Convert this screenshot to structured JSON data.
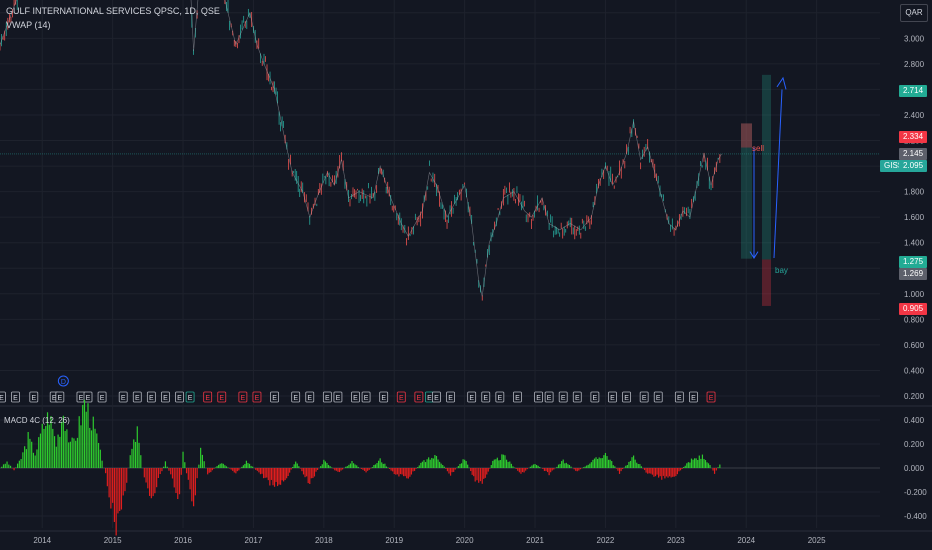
{
  "chart": {
    "title": "GULF INTERNATIONAL SERVICES QPSC, 1D, QSE",
    "indicator": "VWAP (14)",
    "currency": "QAR",
    "macd_label": "MACD 4C (12, 26)",
    "symbol": "GISS",
    "last_price": "2.095",
    "tags": {
      "upper_target": "2.714",
      "sell_level": "2.334",
      "mid_level": "2.145",
      "buy_level": "1.275",
      "buy_low": "1.269",
      "stop_level": "0.905"
    },
    "annotations": {
      "sell": "sell",
      "buy": "bay"
    },
    "events": {
      "dividend_marker": "D",
      "earnings_marker": "E"
    },
    "colors": {
      "background": "#131722",
      "up": "#26a69a",
      "down": "#ef5350",
      "macd_up": "#2ecc2e",
      "macd_down": "#e01e1e",
      "target_arrow": "#2962ff",
      "vwap": "#b0b3ba"
    }
  },
  "chart_data": {
    "type": "line",
    "price_axis": {
      "ticks": [
        "3.200",
        "3.000",
        "2.800",
        "2.600",
        "2.400",
        "2.200",
        "2.000",
        "1.800",
        "1.600",
        "1.400",
        "1.200",
        "1.000",
        "0.800",
        "0.600",
        "0.400",
        "0.200"
      ],
      "ylim": [
        0.2,
        3.3
      ]
    },
    "macd_axis": {
      "ticks": [
        "0.400",
        "0.200",
        "0.000",
        "-0.200",
        "-0.400"
      ],
      "ylim": [
        -0.5,
        0.5
      ]
    },
    "x_labels": [
      "2014",
      "2015",
      "2016",
      "2017",
      "2018",
      "2019",
      "2020",
      "2021",
      "2022",
      "2023",
      "2024",
      "2025"
    ],
    "x_range": [
      2013.4,
      2025.9
    ],
    "price_series": {
      "name": "GISS",
      "points": [
        [
          2013.4,
          2.95
        ],
        [
          2013.6,
          3.25
        ],
        [
          2013.8,
          3.55
        ],
        [
          2014.0,
          3.75
        ],
        [
          2014.85,
          3.95
        ],
        [
          2015.0,
          3.8
        ],
        [
          2015.1,
          3.5
        ],
        [
          2015.2,
          3.6
        ],
        [
          2015.3,
          3.5
        ],
        [
          2015.55,
          3.85
        ],
        [
          2015.9,
          3.6
        ],
        [
          2016.1,
          3.45
        ],
        [
          2016.15,
          2.9
        ],
        [
          2016.25,
          3.55
        ],
        [
          2016.35,
          3.6
        ],
        [
          2016.55,
          3.4
        ],
        [
          2016.75,
          2.95
        ],
        [
          2016.95,
          3.2
        ],
        [
          2017.05,
          2.95
        ],
        [
          2017.15,
          2.8
        ],
        [
          2017.3,
          2.6
        ],
        [
          2017.45,
          2.2
        ],
        [
          2017.55,
          1.95
        ],
        [
          2017.7,
          1.8
        ],
        [
          2017.8,
          1.6
        ],
        [
          2017.9,
          1.75
        ],
        [
          2018.05,
          1.95
        ],
        [
          2018.15,
          1.85
        ],
        [
          2018.25,
          2.05
        ],
        [
          2018.35,
          1.75
        ],
        [
          2018.5,
          1.8
        ],
        [
          2018.7,
          1.75
        ],
        [
          2018.8,
          2.0
        ],
        [
          2018.95,
          1.75
        ],
        [
          2019.1,
          1.55
        ],
        [
          2019.2,
          1.45
        ],
        [
          2019.3,
          1.55
        ],
        [
          2019.4,
          1.65
        ],
        [
          2019.5,
          1.95
        ],
        [
          2019.6,
          1.85
        ],
        [
          2019.75,
          1.6
        ],
        [
          2019.9,
          1.75
        ],
        [
          2020.0,
          1.85
        ],
        [
          2020.1,
          1.55
        ],
        [
          2020.2,
          1.1
        ],
        [
          2020.25,
          0.98
        ],
        [
          2020.35,
          1.4
        ],
        [
          2020.45,
          1.55
        ],
        [
          2020.55,
          1.75
        ],
        [
          2020.7,
          1.8
        ],
        [
          2020.85,
          1.65
        ],
        [
          2020.95,
          1.6
        ],
        [
          2021.1,
          1.75
        ],
        [
          2021.2,
          1.55
        ],
        [
          2021.35,
          1.5
        ],
        [
          2021.5,
          1.55
        ],
        [
          2021.65,
          1.5
        ],
        [
          2021.8,
          1.6
        ],
        [
          2021.9,
          1.85
        ],
        [
          2022.0,
          2.0
        ],
        [
          2022.1,
          1.85
        ],
        [
          2022.2,
          1.95
        ],
        [
          2022.3,
          2.1
        ],
        [
          2022.4,
          2.35
        ],
        [
          2022.5,
          2.05
        ],
        [
          2022.6,
          2.15
        ],
        [
          2022.7,
          1.95
        ],
        [
          2022.8,
          1.75
        ],
        [
          2022.9,
          1.55
        ],
        [
          2023.0,
          1.5
        ],
        [
          2023.1,
          1.65
        ],
        [
          2023.2,
          1.6
        ],
        [
          2023.3,
          1.85
        ],
        [
          2023.4,
          2.1
        ],
        [
          2023.5,
          1.85
        ],
        [
          2023.6,
          2.05
        ],
        [
          2023.65,
          2.095
        ]
      ]
    },
    "annotation_levels": {
      "sell_zone": [
        1.275,
        2.334
      ],
      "upper_target": 2.714,
      "stop": 0.905,
      "buy_low": 1.269
    },
    "macd_series": {
      "points": [
        [
          2013.4,
          0.0
        ],
        [
          2013.5,
          0.05
        ],
        [
          2013.6,
          -0.02
        ],
        [
          2013.7,
          0.08
        ],
        [
          2013.8,
          0.25
        ],
        [
          2013.9,
          0.12
        ],
        [
          2014.0,
          0.32
        ],
        [
          2014.1,
          0.45
        ],
        [
          2014.2,
          0.2
        ],
        [
          2014.3,
          0.48
        ],
        [
          2014.4,
          0.18
        ],
        [
          2014.5,
          0.3
        ],
        [
          2014.6,
          0.55
        ],
        [
          2014.7,
          0.4
        ],
        [
          2014.8,
          0.2
        ],
        [
          2014.85,
          0.05
        ],
        [
          2014.9,
          -0.05
        ],
        [
          2015.0,
          -0.35
        ],
        [
          2015.05,
          -0.55
        ],
        [
          2015.15,
          -0.3
        ],
        [
          2015.25,
          0.1
        ],
        [
          2015.35,
          0.3
        ],
        [
          2015.45,
          -0.1
        ],
        [
          2015.55,
          -0.25
        ],
        [
          2015.65,
          -0.1
        ],
        [
          2015.75,
          0.05
        ],
        [
          2015.85,
          -0.1
        ],
        [
          2015.95,
          -0.25
        ],
        [
          2016.0,
          0.12
        ],
        [
          2016.1,
          -0.2
        ],
        [
          2016.15,
          -0.32
        ],
        [
          2016.25,
          0.15
        ],
        [
          2016.35,
          -0.05
        ],
        [
          2016.55,
          0.05
        ],
        [
          2016.75,
          -0.05
        ],
        [
          2016.9,
          0.06
        ],
        [
          2017.1,
          -0.05
        ],
        [
          2017.3,
          -0.15
        ],
        [
          2017.45,
          -0.1
        ],
        [
          2017.6,
          0.05
        ],
        [
          2017.8,
          -0.12
        ],
        [
          2018.0,
          0.06
        ],
        [
          2018.2,
          -0.04
        ],
        [
          2018.4,
          0.05
        ],
        [
          2018.6,
          -0.04
        ],
        [
          2018.8,
          0.07
        ],
        [
          2019.0,
          -0.05
        ],
        [
          2019.2,
          -0.08
        ],
        [
          2019.4,
          0.05
        ],
        [
          2019.6,
          0.1
        ],
        [
          2019.8,
          -0.06
        ],
        [
          2020.0,
          0.08
        ],
        [
          2020.15,
          -0.1
        ],
        [
          2020.25,
          -0.14
        ],
        [
          2020.4,
          0.05
        ],
        [
          2020.55,
          0.1
        ],
        [
          2020.8,
          -0.05
        ],
        [
          2021.0,
          0.04
        ],
        [
          2021.2,
          -0.05
        ],
        [
          2021.4,
          0.06
        ],
        [
          2021.6,
          -0.03
        ],
        [
          2021.8,
          0.05
        ],
        [
          2022.0,
          0.12
        ],
        [
          2022.2,
          -0.04
        ],
        [
          2022.4,
          0.09
        ],
        [
          2022.6,
          -0.05
        ],
        [
          2022.8,
          -0.08
        ],
        [
          2023.0,
          -0.06
        ],
        [
          2023.2,
          0.06
        ],
        [
          2023.4,
          0.1
        ],
        [
          2023.55,
          -0.04
        ],
        [
          2023.65,
          0.05
        ]
      ]
    },
    "event_markers": [
      {
        "x": 2013.42,
        "t": "E"
      },
      {
        "x": 2013.62,
        "t": "E"
      },
      {
        "x": 2013.88,
        "t": "E"
      },
      {
        "x": 2014.17,
        "t": "E"
      },
      {
        "x": 2014.25,
        "t": "E"
      },
      {
        "x": 2014.55,
        "t": "E"
      },
      {
        "x": 2014.65,
        "t": "E"
      },
      {
        "x": 2014.85,
        "t": "E"
      },
      {
        "x": 2015.15,
        "t": "E"
      },
      {
        "x": 2015.35,
        "t": "E"
      },
      {
        "x": 2015.55,
        "t": "E"
      },
      {
        "x": 2015.75,
        "t": "E"
      },
      {
        "x": 2015.95,
        "t": "E"
      },
      {
        "x": 2016.1,
        "t": "E"
      },
      {
        "x": 2016.35,
        "t": "E"
      },
      {
        "x": 2016.55,
        "t": "E"
      },
      {
        "x": 2016.85,
        "t": "E"
      },
      {
        "x": 2017.05,
        "t": "E"
      },
      {
        "x": 2017.3,
        "t": "E"
      },
      {
        "x": 2017.6,
        "t": "E"
      },
      {
        "x": 2017.8,
        "t": "E"
      },
      {
        "x": 2018.05,
        "t": "E"
      },
      {
        "x": 2018.2,
        "t": "E"
      },
      {
        "x": 2018.45,
        "t": "E"
      },
      {
        "x": 2018.6,
        "t": "E"
      },
      {
        "x": 2018.85,
        "t": "E"
      },
      {
        "x": 2019.1,
        "t": "E"
      },
      {
        "x": 2019.35,
        "t": "E"
      },
      {
        "x": 2019.5,
        "t": "E"
      },
      {
        "x": 2019.6,
        "t": "E"
      },
      {
        "x": 2019.8,
        "t": "E"
      },
      {
        "x": 2020.1,
        "t": "E"
      },
      {
        "x": 2020.3,
        "t": "E"
      },
      {
        "x": 2020.5,
        "t": "E"
      },
      {
        "x": 2020.75,
        "t": "E"
      },
      {
        "x": 2021.05,
        "t": "E"
      },
      {
        "x": 2021.2,
        "t": "E"
      },
      {
        "x": 2021.4,
        "t": "E"
      },
      {
        "x": 2021.6,
        "t": "E"
      },
      {
        "x": 2021.85,
        "t": "E"
      },
      {
        "x": 2022.1,
        "t": "E"
      },
      {
        "x": 2022.3,
        "t": "E"
      },
      {
        "x": 2022.55,
        "t": "E"
      },
      {
        "x": 2022.75,
        "t": "E"
      },
      {
        "x": 2023.05,
        "t": "E"
      },
      {
        "x": 2023.25,
        "t": "E"
      },
      {
        "x": 2023.5,
        "t": "E"
      }
    ],
    "dividend_marker": {
      "x": 2014.3,
      "t": "D"
    }
  }
}
